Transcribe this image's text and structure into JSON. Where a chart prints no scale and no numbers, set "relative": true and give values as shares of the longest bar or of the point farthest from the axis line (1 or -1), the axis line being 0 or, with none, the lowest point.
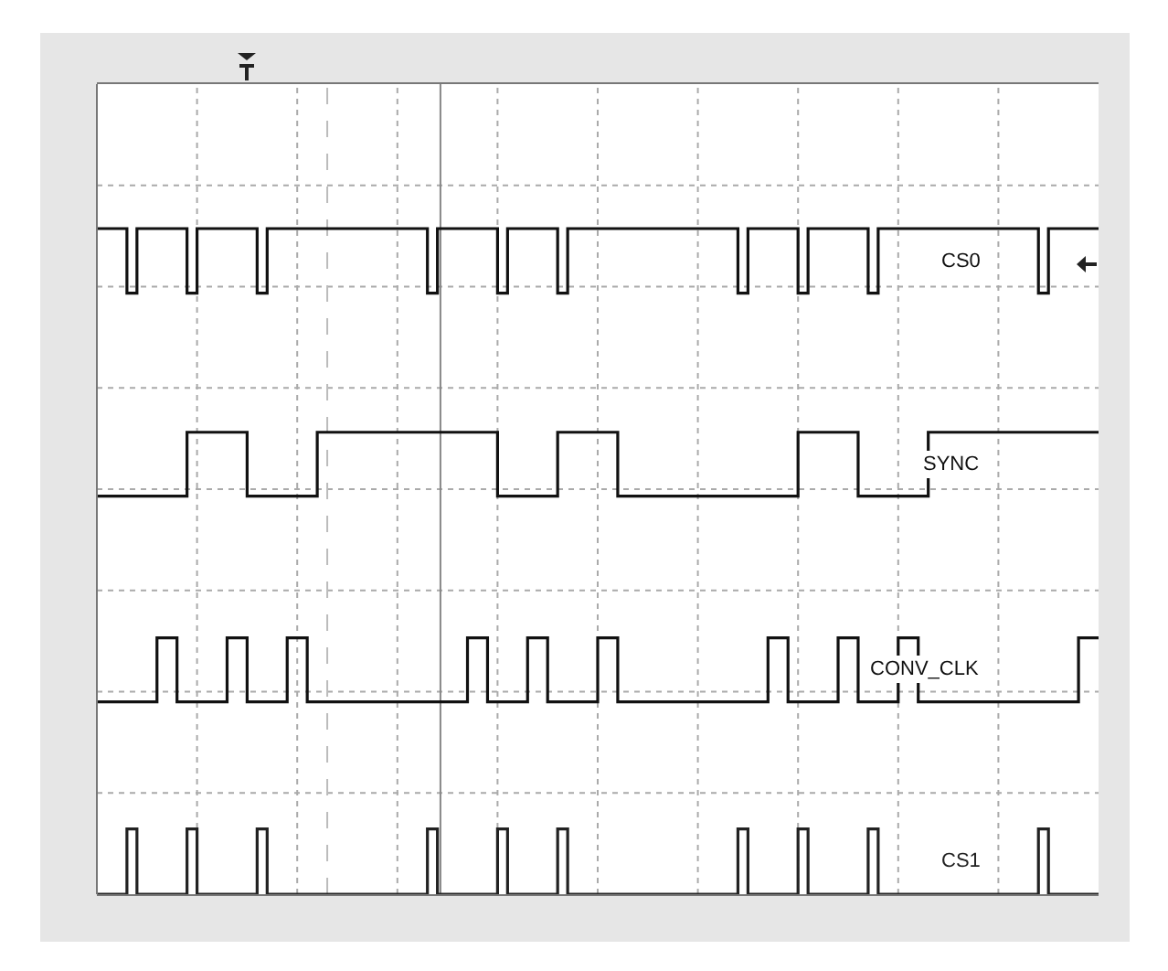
{
  "chart_data": {
    "type": "step",
    "relative": true,
    "grid": true,
    "legend": false,
    "categories": [
      null,
      null,
      null,
      null,
      null,
      null,
      null,
      null,
      null,
      null,
      null,
      null,
      null,
      null,
      null,
      null,
      null,
      null,
      null,
      null,
      null,
      null,
      null,
      null,
      null,
      null,
      null,
      null,
      null,
      null,
      null,
      null,
      null,
      null,
      null,
      null,
      null,
      null,
      null,
      null,
      null,
      null,
      null,
      null,
      null,
      null,
      null,
      null,
      null,
      null,
      null,
      null,
      null,
      null,
      null,
      null,
      null,
      null,
      null,
      null,
      null,
      null,
      null,
      null,
      null,
      null,
      null,
      null,
      null,
      null,
      null,
      null,
      null,
      null,
      null,
      null,
      null,
      null,
      null,
      null,
      null,
      null,
      null,
      null,
      null,
      null,
      null,
      null,
      null,
      null,
      null,
      null,
      null,
      null,
      null,
      null,
      null,
      null,
      null,
      null,
      null
    ],
    "series": [
      {
        "name": "CS0",
        "color": "#111111",
        "values": [
          1,
          1,
          1,
          0.903,
          1,
          1,
          1,
          1,
          1,
          0.903,
          1,
          1,
          1,
          1,
          1,
          1,
          0.903,
          1,
          1,
          1,
          1,
          1,
          1,
          1,
          1,
          1,
          1,
          1,
          1,
          1,
          1,
          1,
          1,
          0.903,
          1,
          1,
          1,
          1,
          1,
          1,
          0.903,
          1,
          1,
          1,
          1,
          1,
          0.903,
          1,
          1,
          1,
          1,
          1,
          1,
          1,
          1,
          1,
          1,
          1,
          1,
          1,
          1,
          1,
          1,
          1,
          0.903,
          1,
          1,
          1,
          1,
          1,
          0.903,
          1,
          1,
          1,
          1,
          1,
          1,
          0.903,
          1,
          1,
          1,
          1,
          1,
          1,
          1,
          1,
          1,
          1,
          1,
          1,
          1,
          1,
          1,
          1,
          0.903,
          1,
          1,
          1,
          1,
          1,
          1
        ]
      },
      {
        "name": "SYNC",
        "color": "#111111",
        "values": [
          0.598,
          0.598,
          0.598,
          0.598,
          0.598,
          0.598,
          0.598,
          0.598,
          0.598,
          0.694,
          0.694,
          0.694,
          0.694,
          0.694,
          0.694,
          0.598,
          0.598,
          0.598,
          0.598,
          0.598,
          0.598,
          0.598,
          0.694,
          0.694,
          0.694,
          0.694,
          0.694,
          0.694,
          0.694,
          0.694,
          0.694,
          0.694,
          0.694,
          0.694,
          0.694,
          0.694,
          0.694,
          0.694,
          0.694,
          0.694,
          0.598,
          0.598,
          0.598,
          0.598,
          0.598,
          0.598,
          0.694,
          0.694,
          0.694,
          0.694,
          0.694,
          0.694,
          0.598,
          0.598,
          0.598,
          0.598,
          0.598,
          0.598,
          0.598,
          0.598,
          0.598,
          0.598,
          0.598,
          0.598,
          0.598,
          0.598,
          0.598,
          0.598,
          0.598,
          0.598,
          0.694,
          0.694,
          0.694,
          0.694,
          0.694,
          0.694,
          0.598,
          0.598,
          0.598,
          0.598,
          0.598,
          0.598,
          0.598,
          0.694,
          0.694,
          0.694,
          0.694,
          0.694,
          0.694,
          0.694,
          0.694,
          0.694,
          0.694,
          0.694,
          0.694,
          0.694,
          0.694,
          0.694,
          0.694,
          0.694,
          0.694
        ]
      },
      {
        "name": "CONV_CLK",
        "color": "#111111",
        "values": [
          0.289,
          0.289,
          0.289,
          0.289,
          0.289,
          0.289,
          0.385,
          0.385,
          0.289,
          0.289,
          0.289,
          0.289,
          0.289,
          0.385,
          0.385,
          0.289,
          0.289,
          0.289,
          0.289,
          0.385,
          0.385,
          0.289,
          0.289,
          0.289,
          0.289,
          0.289,
          0.289,
          0.289,
          0.289,
          0.289,
          0.289,
          0.289,
          0.289,
          0.289,
          0.289,
          0.289,
          0.289,
          0.385,
          0.385,
          0.289,
          0.289,
          0.289,
          0.289,
          0.385,
          0.385,
          0.289,
          0.289,
          0.289,
          0.289,
          0.289,
          0.385,
          0.385,
          0.289,
          0.289,
          0.289,
          0.289,
          0.289,
          0.289,
          0.289,
          0.289,
          0.289,
          0.289,
          0.289,
          0.289,
          0.289,
          0.289,
          0.289,
          0.385,
          0.385,
          0.289,
          0.289,
          0.289,
          0.289,
          0.289,
          0.385,
          0.385,
          0.289,
          0.289,
          0.289,
          0.289,
          0.385,
          0.385,
          0.289,
          0.289,
          0.289,
          0.289,
          0.289,
          0.289,
          0.289,
          0.289,
          0.289,
          0.289,
          0.289,
          0.289,
          0.289,
          0.289,
          0.289,
          0.289,
          0.385,
          0.385,
          0.385
        ]
      },
      {
        "name": "CS1",
        "color": "#222222",
        "values": [
          0,
          0,
          0,
          0.098,
          0,
          0,
          0,
          0,
          0,
          0.098,
          0,
          0,
          0,
          0,
          0,
          0,
          0.098,
          0,
          0,
          0,
          0,
          0,
          0,
          0,
          0,
          0,
          0,
          0,
          0,
          0,
          0,
          0,
          0,
          0.098,
          0,
          0,
          0,
          0,
          0,
          0,
          0.098,
          0,
          0,
          0,
          0,
          0,
          0.098,
          0,
          0,
          0,
          0,
          0,
          0,
          0,
          0,
          0,
          0,
          0,
          0,
          0,
          0,
          0,
          0,
          0,
          0.098,
          0,
          0,
          0,
          0,
          0,
          0.098,
          0,
          0,
          0,
          0,
          0,
          0,
          0.098,
          0,
          0,
          0,
          0,
          0,
          0,
          0,
          0,
          0,
          0,
          0,
          0,
          0,
          0,
          0,
          0,
          0.098,
          0,
          0,
          0,
          0,
          0,
          0
        ]
      }
    ]
  }
}
